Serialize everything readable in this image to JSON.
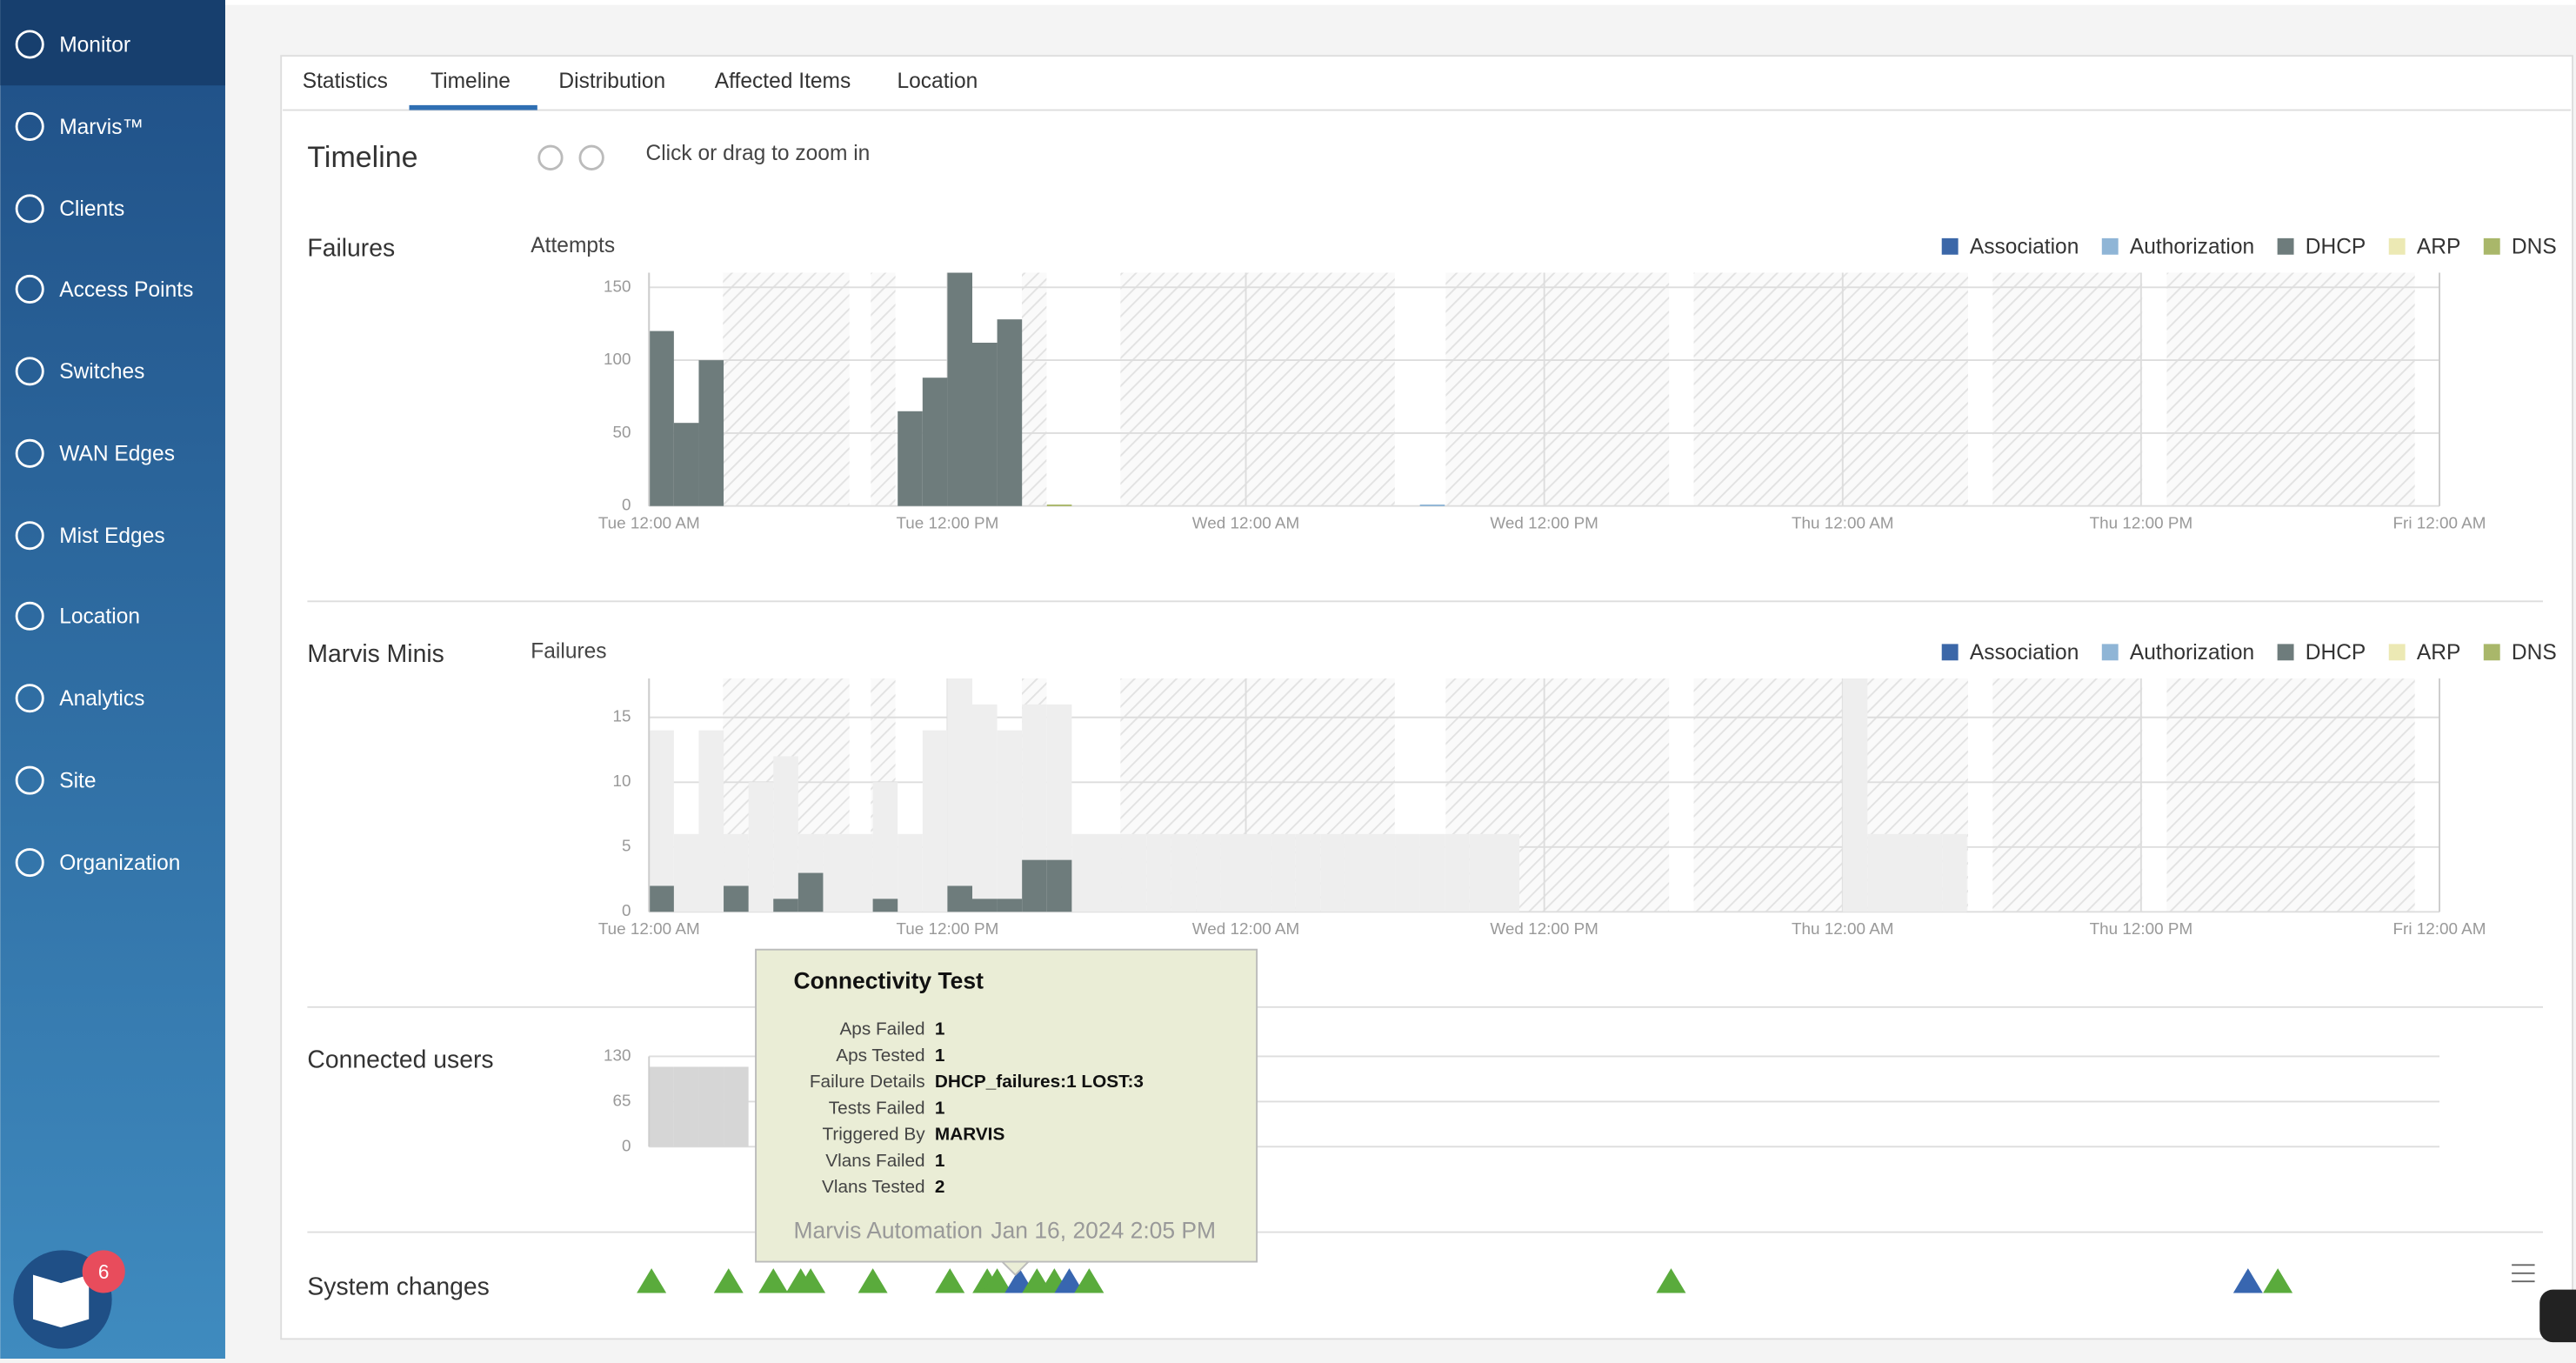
{
  "sidebar": {
    "items": [
      "Monitor",
      "Marvis™",
      "Clients",
      "Access Points",
      "Switches",
      "WAN Edges",
      "Mist Edges",
      "Location",
      "Analytics",
      "Site",
      "Organization"
    ],
    "badge": "6"
  },
  "tabs": [
    "Statistics",
    "Timeline",
    "Distribution",
    "Affected Items",
    "Location"
  ],
  "timeline": {
    "title": "Timeline",
    "hint": "Click or drag to zoom in"
  },
  "chart_data": [
    {
      "type": "bar",
      "title": "Failures",
      "y_label": "Attempts",
      "grid": true,
      "xlim": [
        0,
        72
      ],
      "ylim": [
        0,
        160
      ],
      "xticks": [
        {
          "value": 0,
          "label": "Tue 12:00 AM"
        },
        {
          "value": 12,
          "label": "Tue 12:00 PM"
        },
        {
          "value": 24,
          "label": "Wed 12:00 AM"
        },
        {
          "value": 36,
          "label": "Wed 12:00 PM"
        },
        {
          "value": 48,
          "label": "Thu 12:00 AM"
        },
        {
          "value": 60,
          "label": "Thu 12:00 PM"
        },
        {
          "value": 72,
          "label": "Fri 12:00 AM"
        }
      ],
      "yticks": [
        0,
        50,
        100,
        150
      ],
      "series": [
        {
          "name": "Association",
          "color": "#3b67a8",
          "x": [],
          "values": []
        },
        {
          "name": "Authorization",
          "color": "#8fb5d6",
          "x": [
            31
          ],
          "values": [
            1
          ]
        },
        {
          "name": "DHCP",
          "color": "#6e7c7c",
          "x": [
            0,
            1,
            2,
            10,
            11,
            12,
            13,
            14
          ],
          "values": [
            120,
            57,
            100,
            65,
            88,
            160,
            112,
            128
          ]
        },
        {
          "name": "ARP",
          "color": "#ece9b4",
          "x": [],
          "values": []
        },
        {
          "name": "DNS",
          "color": "#a9b76a",
          "x": [
            16
          ],
          "values": [
            1
          ]
        }
      ]
    },
    {
      "type": "bar",
      "title": "Marvis Minis",
      "y_label": "Failures",
      "grid": true,
      "xlim": [
        0,
        72
      ],
      "ylim": [
        0,
        18
      ],
      "xticks": [
        {
          "value": 0,
          "label": "Tue 12:00 AM"
        },
        {
          "value": 12,
          "label": "Tue 12:00 PM"
        },
        {
          "value": 24,
          "label": "Wed 12:00 AM"
        },
        {
          "value": 36,
          "label": "Wed 12:00 PM"
        },
        {
          "value": 48,
          "label": "Thu 12:00 AM"
        },
        {
          "value": 60,
          "label": "Thu 12:00 PM"
        },
        {
          "value": 72,
          "label": "Fri 12:00 AM"
        }
      ],
      "yticks": [
        0,
        5,
        10,
        15
      ],
      "series": [
        {
          "color": "#eeeeee",
          "x": [
            0,
            1,
            2,
            3,
            4,
            5,
            6,
            7,
            8,
            9,
            10,
            11,
            12,
            13,
            14,
            15,
            16,
            17,
            18,
            19,
            20,
            21,
            22,
            23,
            24,
            25,
            26,
            27,
            28,
            29,
            30,
            31,
            32,
            33,
            34,
            48,
            49,
            50,
            51,
            52
          ],
          "values": [
            14,
            6,
            14,
            6,
            10,
            12,
            6,
            6,
            6,
            10,
            6,
            14,
            18,
            16,
            14,
            16,
            16,
            6,
            6,
            6,
            6,
            6,
            6,
            6,
            6,
            6,
            6,
            6,
            6,
            6,
            6,
            6,
            6,
            6,
            6,
            18,
            6,
            6,
            6,
            6
          ]
        },
        {
          "name": "Association",
          "color": "#3b67a8",
          "x": [],
          "values": []
        },
        {
          "name": "Authorization",
          "color": "#8fb5d6",
          "x": [],
          "values": []
        },
        {
          "name": "DHCP",
          "color": "#6e7c7c",
          "x": [
            0,
            3,
            5,
            6,
            9,
            12,
            13,
            14,
            15,
            16
          ],
          "values": [
            2,
            2,
            1,
            3,
            1,
            2,
            1,
            1,
            4,
            4
          ]
        },
        {
          "name": "ARP",
          "color": "#ece9b4",
          "x": [],
          "values": []
        },
        {
          "name": "DNS",
          "color": "#a9b76a",
          "x": [],
          "values": []
        }
      ]
    },
    {
      "type": "bar",
      "title": "Connected users",
      "grid": true,
      "xlim": [
        0,
        72
      ],
      "ylim": [
        0,
        130
      ],
      "yticks": [
        0,
        65,
        130
      ],
      "series": [
        {
          "color": "#d6d6d6",
          "x": [
            0,
            1,
            2,
            3
          ],
          "values": [
            115,
            115,
            115,
            115
          ]
        }
      ]
    }
  ],
  "system_changes": {
    "title": "System changes",
    "events": [
      {
        "x": 0.1,
        "color": "#5aab3c"
      },
      {
        "x": 3.2,
        "color": "#5aab3c"
      },
      {
        "x": 5,
        "color": "#5aab3c"
      },
      {
        "x": 6.1,
        "color": "#5aab3c"
      },
      {
        "x": 6.5,
        "color": "#5aab3c"
      },
      {
        "x": 9,
        "color": "#5aab3c"
      },
      {
        "x": 12.1,
        "color": "#5aab3c"
      },
      {
        "x": 13.6,
        "color": "#5aab3c"
      },
      {
        "x": 14,
        "color": "#5aab3c"
      },
      {
        "x": 14.9,
        "color": "#3866b0"
      },
      {
        "x": 15.6,
        "color": "#5aab3c"
      },
      {
        "x": 16.3,
        "color": "#5aab3c"
      },
      {
        "x": 16.9,
        "color": "#3866b0"
      },
      {
        "x": 17.7,
        "color": "#5aab3c"
      },
      {
        "x": 41.1,
        "color": "#5aab3c"
      },
      {
        "x": 64.3,
        "color": "#3866b0"
      },
      {
        "x": 65.5,
        "color": "#5aab3c"
      }
    ]
  },
  "tooltip": {
    "title": "Connectivity Test",
    "rows": [
      [
        "Aps Failed",
        "1"
      ],
      [
        "Aps Tested",
        "1"
      ],
      [
        "Failure Details",
        "DHCP_failures:1 LOST:3"
      ],
      [
        "Tests Failed",
        "1"
      ],
      [
        "Triggered By",
        "MARVIS"
      ],
      [
        "Vlans Failed",
        "1"
      ],
      [
        "Vlans Tested",
        "2"
      ]
    ],
    "source": "Marvis Automation",
    "time": "Jan 16, 2024 2:05 PM"
  }
}
